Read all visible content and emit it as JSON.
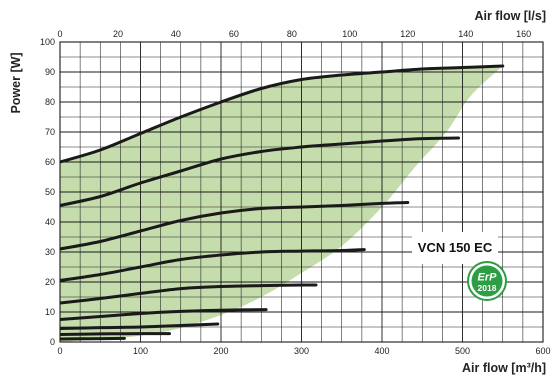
{
  "chart_data": {
    "type": "line",
    "title": "",
    "xlabel": "Air flow [m³/h]",
    "x2label": "Air flow [l/s]",
    "ylabel": "Power [W]",
    "xlim": [
      0,
      600
    ],
    "x2lim": [
      0,
      166.67
    ],
    "ylim": [
      0,
      100
    ],
    "x_ticks": [
      0,
      100,
      200,
      300,
      400,
      500,
      600
    ],
    "x2_ticks": [
      0,
      20,
      40,
      60,
      80,
      100,
      120,
      140,
      160
    ],
    "y_ticks": [
      0,
      10,
      20,
      30,
      40,
      50,
      60,
      70,
      80,
      90,
      100
    ],
    "grid": true,
    "legend": "none",
    "model_label": "VCN 150 EC",
    "badge": {
      "line1": "ErP",
      "line2": "2018"
    },
    "colors": {
      "curve": "#1a1a1a",
      "region": "#c5dcad",
      "badge": "#2e9e44",
      "grid": "#1a1a1a"
    },
    "erp_region": {
      "upper_boundary": [
        [
          0,
          60
        ],
        [
          50,
          64
        ],
        [
          100,
          69.5
        ],
        [
          150,
          75
        ],
        [
          200,
          80
        ],
        [
          250,
          84.5
        ],
        [
          300,
          87.5
        ],
        [
          350,
          89
        ],
        [
          400,
          90
        ],
        [
          450,
          91
        ],
        [
          500,
          91.5
        ],
        [
          550,
          92
        ]
      ],
      "lower_boundary": [
        [
          550,
          92
        ],
        [
          510,
          82
        ],
        [
          480,
          70
        ],
        [
          440,
          58
        ],
        [
          400,
          45
        ],
        [
          350,
          32
        ],
        [
          300,
          23
        ],
        [
          250,
          15
        ],
        [
          200,
          9
        ],
        [
          140,
          4
        ],
        [
          80,
          1.5
        ],
        [
          0,
          0
        ]
      ]
    },
    "series": [
      {
        "values": [
          [
            0,
            60
          ],
          [
            50,
            64
          ],
          [
            100,
            69.5
          ],
          [
            150,
            75
          ],
          [
            200,
            80
          ],
          [
            250,
            84.5
          ],
          [
            300,
            87.5
          ],
          [
            350,
            89
          ],
          [
            400,
            90
          ],
          [
            450,
            91
          ],
          [
            500,
            91.5
          ],
          [
            550,
            92
          ]
        ]
      },
      {
        "values": [
          [
            0,
            45.5
          ],
          [
            50,
            48.5
          ],
          [
            100,
            53
          ],
          [
            150,
            57
          ],
          [
            200,
            61
          ],
          [
            250,
            63.5
          ],
          [
            300,
            65
          ],
          [
            350,
            66
          ],
          [
            400,
            67
          ],
          [
            450,
            67.8
          ],
          [
            495,
            68
          ]
        ]
      },
      {
        "values": [
          [
            0,
            31
          ],
          [
            50,
            33.5
          ],
          [
            100,
            37
          ],
          [
            150,
            40.5
          ],
          [
            200,
            43
          ],
          [
            250,
            44.5
          ],
          [
            300,
            45
          ],
          [
            350,
            45.5
          ],
          [
            400,
            46.2
          ],
          [
            432,
            46.5
          ]
        ]
      },
      {
        "values": [
          [
            0,
            20.5
          ],
          [
            50,
            22.5
          ],
          [
            100,
            25
          ],
          [
            150,
            27.5
          ],
          [
            200,
            29
          ],
          [
            250,
            30
          ],
          [
            300,
            30.3
          ],
          [
            350,
            30.5
          ],
          [
            378,
            30.8
          ]
        ]
      },
      {
        "values": [
          [
            0,
            13
          ],
          [
            50,
            14.5
          ],
          [
            100,
            16.2
          ],
          [
            150,
            17.8
          ],
          [
            200,
            18.5
          ],
          [
            250,
            18.8
          ],
          [
            300,
            19
          ],
          [
            318,
            19
          ]
        ]
      },
      {
        "values": [
          [
            0,
            7.5
          ],
          [
            50,
            8.5
          ],
          [
            100,
            9.5
          ],
          [
            150,
            10.2
          ],
          [
            200,
            10.6
          ],
          [
            256,
            10.8
          ]
        ]
      },
      {
        "values": [
          [
            0,
            4.5
          ],
          [
            50,
            4.8
          ],
          [
            100,
            5
          ],
          [
            150,
            5.5
          ],
          [
            196,
            6
          ]
        ]
      },
      {
        "values": [
          [
            0,
            2.5
          ],
          [
            50,
            2.7
          ],
          [
            100,
            2.8
          ],
          [
            136,
            2.8
          ]
        ]
      },
      {
        "values": [
          [
            0,
            1
          ],
          [
            40,
            1.1
          ],
          [
            80,
            1.2
          ]
        ]
      }
    ]
  }
}
